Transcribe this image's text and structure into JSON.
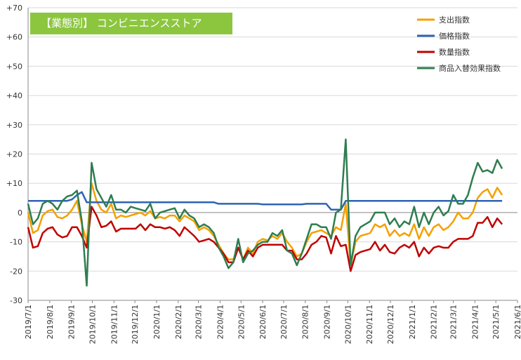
{
  "chart_data": {
    "type": "line",
    "title": "【業態別】 コンビニエンスストア",
    "x": [
      "2019/7/1",
      "2019/7/8",
      "2019/7/15",
      "2019/7/22",
      "2019/7/29",
      "2019/8/5",
      "2019/8/12",
      "2019/8/19",
      "2019/8/26",
      "2019/9/2",
      "2019/9/9",
      "2019/9/16",
      "2019/9/23",
      "2019/9/30",
      "2019/10/7",
      "2019/10/14",
      "2019/10/21",
      "2019/10/28",
      "2019/11/4",
      "2019/11/11",
      "2019/11/18",
      "2019/11/25",
      "2019/12/2",
      "2019/12/9",
      "2019/12/16",
      "2019/12/23",
      "2019/12/30",
      "2020/1/6",
      "2020/1/13",
      "2020/1/20",
      "2020/1/27",
      "2020/2/3",
      "2020/2/10",
      "2020/2/17",
      "2020/2/24",
      "2020/3/2",
      "2020/3/9",
      "2020/3/16",
      "2020/3/23",
      "2020/3/30",
      "2020/4/6",
      "2020/4/13",
      "2020/4/20",
      "2020/4/27",
      "2020/5/4",
      "2020/5/11",
      "2020/5/18",
      "2020/5/25",
      "2020/6/1",
      "2020/6/8",
      "2020/6/15",
      "2020/6/22",
      "2020/6/29",
      "2020/7/6",
      "2020/7/13",
      "2020/7/20",
      "2020/7/27",
      "2020/8/3",
      "2020/8/10",
      "2020/8/17",
      "2020/8/24",
      "2020/8/31",
      "2020/9/7",
      "2020/9/14",
      "2020/9/21",
      "2020/9/28",
      "2020/10/5",
      "2020/10/12",
      "2020/10/19",
      "2020/10/26",
      "2020/11/2",
      "2020/11/9",
      "2020/11/16",
      "2020/11/23",
      "2020/11/30",
      "2020/12/7",
      "2020/12/14",
      "2020/12/21",
      "2020/12/28",
      "2021/1/4",
      "2021/1/11",
      "2021/1/18",
      "2021/1/25",
      "2021/2/1",
      "2021/2/8",
      "2021/2/15",
      "2021/2/22",
      "2021/3/1",
      "2021/3/8",
      "2021/3/15",
      "2021/3/22",
      "2021/3/29",
      "2021/4/5",
      "2021/4/12",
      "2021/4/19",
      "2021/4/26",
      "2021/5/3",
      "2021/5/10"
    ],
    "xlim": [
      "2019/7/1",
      "2021/6/1"
    ],
    "xticks": [
      "2019/7/1",
      "2019/8/1",
      "2019/9/1",
      "2019/10/1",
      "2019/11/1",
      "2019/12/1",
      "2020/1/1",
      "2020/2/1",
      "2020/3/1",
      "2020/4/1",
      "2020/5/1",
      "2020/6/1",
      "2020/7/1",
      "2020/8/1",
      "2020/9/1",
      "2020/10/1",
      "2020/11/1",
      "2020/12/1",
      "2021/1/1",
      "2021/2/1",
      "2021/3/1",
      "2021/4/1",
      "2021/5/1",
      "2021/6/1"
    ],
    "ylim": [
      -30,
      70
    ],
    "yticks": [
      -30,
      -20,
      -10,
      0,
      {
        "value": 10,
        "label": "+10"
      },
      {
        "value": 20,
        "label": "+20"
      },
      {
        "value": 30,
        "label": "+30"
      },
      {
        "value": 40,
        "label": "+40"
      },
      {
        "value": 50,
        "label": "+50"
      },
      {
        "value": 60,
        "label": "+60"
      },
      {
        "value": 70,
        "label": "+70"
      }
    ],
    "grid": true,
    "legend": "upper right",
    "series": [
      {
        "name": "支出指数",
        "color": "#f5a000",
        "values": [
          0,
          -7,
          -6,
          -1,
          0.5,
          1,
          -1.5,
          -2,
          -1,
          1,
          4,
          -4,
          -10,
          10,
          4,
          1,
          0,
          3,
          -2,
          -1,
          -1.5,
          -1,
          -0.5,
          0,
          -1,
          0.5,
          -2,
          -1.5,
          -2,
          -1,
          -1,
          -3,
          -1,
          -2,
          -3,
          -6,
          -5,
          -6,
          -8,
          -11,
          -14,
          -16,
          -16,
          -12,
          -16,
          -12,
          -14,
          -10,
          -9,
          -9.5,
          -8,
          -9,
          -7,
          -10,
          -12,
          -15,
          -14,
          -10,
          -7,
          -6.5,
          -6,
          -7,
          -8,
          -5,
          -6,
          3,
          -18,
          -10,
          -8,
          -7.5,
          -7,
          -4,
          -5,
          -4,
          -8,
          -6,
          -8,
          -7,
          -8,
          -4,
          -9,
          -5,
          -8,
          -5,
          -4,
          -6,
          -5,
          -3,
          0,
          -2,
          -2,
          0,
          5,
          7,
          8,
          5,
          8.5,
          6
        ]
      },
      {
        "name": "価格指数",
        "color": "#2e64b4",
        "values": [
          4,
          4,
          4,
          4,
          4,
          4,
          4,
          4,
          4,
          4.5,
          6,
          7,
          3.5,
          3.5,
          3.5,
          3.5,
          3.5,
          3.5,
          3.5,
          3.5,
          3.5,
          3.5,
          3.5,
          3.5,
          3.5,
          3.5,
          3.5,
          3.5,
          3.5,
          3.5,
          3.5,
          3.5,
          3.5,
          3.5,
          3.5,
          3.5,
          3.5,
          3.5,
          3.5,
          3,
          3,
          3,
          3,
          3,
          3,
          3,
          3,
          3,
          2.8,
          2.8,
          2.8,
          2.8,
          2.8,
          2.8,
          2.8,
          2.8,
          2.8,
          3,
          3,
          3,
          3,
          3,
          1,
          1,
          1,
          4,
          4,
          4,
          4,
          4,
          4,
          4,
          4,
          4,
          4,
          4,
          4,
          4,
          4,
          4,
          4,
          4,
          4,
          4,
          4,
          4,
          4,
          4,
          4,
          4,
          4,
          4,
          4,
          4,
          4,
          4,
          4,
          4
        ]
      },
      {
        "name": "数量指数",
        "color": "#c00000",
        "values": [
          -5,
          -12,
          -11.5,
          -7,
          -5.5,
          -5,
          -7.5,
          -8.5,
          -8,
          -5,
          -5,
          -8,
          -12,
          2,
          -1,
          -5,
          -4.5,
          -3,
          -6.5,
          -5.5,
          -5.5,
          -5.5,
          -5.5,
          -4,
          -6,
          -4,
          -5,
          -5,
          -5.5,
          -5,
          -6,
          -8,
          -5,
          -6.5,
          -8,
          -10,
          -9.5,
          -9,
          -10,
          -12,
          -14,
          -17,
          -17,
          -12,
          -16,
          -13,
          -15,
          -12,
          -11,
          -11,
          -11,
          -11,
          -11,
          -13,
          -13,
          -16,
          -16,
          -14,
          -11,
          -10,
          -8,
          -8.5,
          -14,
          -8,
          -11.5,
          -11,
          -20,
          -14.5,
          -13.5,
          -13,
          -12.5,
          -10,
          -13,
          -11,
          -13.5,
          -14,
          -12,
          -11,
          -12,
          -10,
          -15,
          -12,
          -14,
          -12,
          -11.5,
          -12,
          -12,
          -10,
          -9,
          -9,
          -9,
          -8,
          -3.5,
          -3.5,
          -1.5,
          -5,
          -2,
          -4
        ]
      },
      {
        "name": "商品入替効果指数",
        "color": "#2e7d4f",
        "values": [
          3,
          -4,
          -2,
          3,
          4,
          3,
          1,
          4,
          5.5,
          6,
          7.5,
          -3,
          -25,
          17,
          8,
          5,
          2,
          6,
          1,
          1,
          0,
          2,
          1.5,
          1,
          0.5,
          3,
          -2,
          0,
          0.5,
          1,
          1.5,
          -2,
          1,
          -1,
          -2,
          -5,
          -4,
          -5,
          -7,
          -12,
          -15,
          -19,
          -17,
          -9,
          -17,
          -14,
          -13,
          -11,
          -10,
          -10,
          -7,
          -8,
          -6,
          -13,
          -14,
          -18,
          -14,
          -9,
          -4,
          -4,
          -5,
          -5,
          -9,
          0,
          1,
          25,
          -18,
          -8,
          -5,
          -4,
          -3,
          0,
          0,
          0,
          -4,
          -2,
          -5,
          -3,
          -4,
          2,
          -5,
          0,
          -4,
          0,
          2,
          -1,
          0.5,
          6,
          3,
          3,
          6,
          12,
          17,
          14,
          14.5,
          13.5,
          18,
          15
        ]
      }
    ]
  }
}
